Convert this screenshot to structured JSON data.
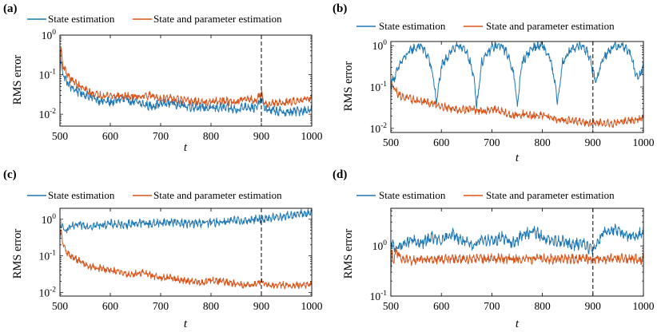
{
  "colors": {
    "state": "#1f77b4",
    "param": "#d95319"
  },
  "chart_data": [
    {
      "panel": "(a)",
      "type": "line",
      "xlabel": "t",
      "ylabel": "RMS error",
      "xlim": [
        500,
        1000
      ],
      "xticks": [
        "500",
        "600",
        "700",
        "800",
        "900",
        "1000"
      ],
      "ylim_log10": [
        -2.3,
        0
      ],
      "yticks": [
        {
          "exp": -2,
          "label": "10",
          "sup": "-2"
        },
        {
          "exp": -1,
          "label": "10",
          "sup": "-1"
        },
        {
          "exp": 0,
          "label": "10",
          "sup": "0"
        }
      ],
      "vline_x": 900,
      "legend": [
        "State estimation",
        "State and parameter estimation"
      ],
      "series": [
        {
          "name": "State estimation",
          "x": [
            500,
            505,
            510,
            520,
            540,
            560,
            580,
            600,
            620,
            650,
            680,
            700,
            720,
            750,
            780,
            800,
            820,
            850,
            870,
            890,
            900,
            905,
            910,
            930,
            950,
            970,
            1000
          ],
          "y": [
            0.35,
            0.12,
            0.08,
            0.05,
            0.035,
            0.028,
            0.022,
            0.02,
            0.024,
            0.02,
            0.016,
            0.018,
            0.02,
            0.016,
            0.015,
            0.014,
            0.015,
            0.013,
            0.016,
            0.014,
            0.025,
            0.016,
            0.013,
            0.012,
            0.011,
            0.012,
            0.013
          ]
        },
        {
          "name": "State and parameter estimation",
          "x": [
            500,
            502,
            505,
            510,
            520,
            540,
            560,
            580,
            600,
            620,
            650,
            680,
            700,
            720,
            750,
            780,
            800,
            820,
            850,
            870,
            890,
            900,
            905,
            910,
            930,
            950,
            970,
            1000
          ],
          "y": [
            0.1,
            0.5,
            0.2,
            0.13,
            0.08,
            0.05,
            0.035,
            0.03,
            0.03,
            0.029,
            0.028,
            0.03,
            0.025,
            0.025,
            0.022,
            0.02,
            0.02,
            0.022,
            0.02,
            0.025,
            0.022,
            0.035,
            0.02,
            0.018,
            0.019,
            0.02,
            0.022,
            0.026
          ]
        }
      ]
    },
    {
      "panel": "(b)",
      "type": "line",
      "xlabel": "t",
      "ylabel": "RMS error",
      "xlim": [
        500,
        1000
      ],
      "xticks": [
        "500",
        "600",
        "700",
        "800",
        "900",
        "1000"
      ],
      "ylim_log10": [
        -2.1,
        0.1
      ],
      "yticks": [
        {
          "exp": -2,
          "label": "10",
          "sup": "-2"
        },
        {
          "exp": -1,
          "label": "10",
          "sup": "-1"
        },
        {
          "exp": 0,
          "label": "10",
          "sup": "0"
        }
      ],
      "vline_x": 900,
      "legend": [
        "State estimation",
        "State and parameter estimation"
      ],
      "series": [
        {
          "name": "State estimation",
          "x": [
            500,
            510,
            520,
            540,
            560,
            575,
            585,
            590,
            600,
            620,
            640,
            655,
            665,
            670,
            680,
            700,
            720,
            735,
            745,
            750,
            760,
            780,
            800,
            815,
            825,
            830,
            840,
            860,
            880,
            895,
            905,
            910,
            920,
            940,
            960,
            975,
            985,
            990,
            1000
          ],
          "y": [
            0.12,
            0.2,
            0.4,
            0.8,
            1.0,
            0.5,
            0.15,
            0.04,
            0.3,
            0.8,
            1.0,
            0.5,
            0.15,
            0.035,
            0.4,
            0.9,
            1.0,
            0.5,
            0.15,
            0.035,
            0.4,
            0.9,
            1.0,
            0.5,
            0.12,
            0.04,
            0.4,
            0.9,
            1.0,
            0.5,
            0.12,
            0.2,
            0.5,
            0.95,
            1.0,
            0.6,
            0.2,
            0.15,
            0.35
          ]
        },
        {
          "name": "State and parameter estimation",
          "x": [
            500,
            510,
            520,
            540,
            560,
            580,
            600,
            620,
            640,
            660,
            680,
            700,
            720,
            740,
            760,
            780,
            800,
            820,
            840,
            860,
            880,
            900,
            920,
            940,
            960,
            980,
            1000
          ],
          "y": [
            0.14,
            0.08,
            0.06,
            0.05,
            0.045,
            0.04,
            0.035,
            0.03,
            0.028,
            0.03,
            0.025,
            0.03,
            0.025,
            0.02,
            0.022,
            0.02,
            0.02,
            0.018,
            0.016,
            0.015,
            0.014,
            0.013,
            0.014,
            0.013,
            0.015,
            0.016,
            0.018
          ]
        }
      ]
    },
    {
      "panel": "(c)",
      "type": "line",
      "xlabel": "t",
      "ylabel": "RMS error",
      "xlim": [
        500,
        1000
      ],
      "xticks": [
        "500",
        "600",
        "700",
        "800",
        "900",
        "1000"
      ],
      "ylim_log10": [
        -2.1,
        0.3
      ],
      "yticks": [
        {
          "exp": -2,
          "label": "10",
          "sup": "-2"
        },
        {
          "exp": -1,
          "label": "10",
          "sup": "-1"
        },
        {
          "exp": 0,
          "label": "10",
          "sup": "0"
        }
      ],
      "vline_x": 900,
      "legend": [
        "State estimation",
        "State and parameter estimation"
      ],
      "series": [
        {
          "name": "State estimation",
          "x": [
            500,
            510,
            520,
            540,
            560,
            580,
            600,
            620,
            640,
            660,
            680,
            700,
            720,
            740,
            760,
            780,
            800,
            820,
            840,
            860,
            880,
            900,
            920,
            940,
            960,
            980,
            1000
          ],
          "y": [
            0.7,
            0.5,
            0.6,
            0.7,
            0.65,
            0.7,
            0.75,
            0.7,
            0.75,
            0.8,
            0.75,
            0.8,
            0.85,
            0.8,
            0.75,
            0.8,
            0.8,
            0.85,
            0.9,
            0.9,
            0.95,
            1.0,
            1.1,
            1.2,
            1.3,
            1.4,
            1.5
          ]
        },
        {
          "name": "State and parameter estimation",
          "x": [
            500,
            502,
            505,
            510,
            520,
            540,
            560,
            580,
            600,
            620,
            640,
            660,
            680,
            700,
            720,
            740,
            760,
            780,
            800,
            820,
            840,
            860,
            880,
            900,
            920,
            940,
            960,
            980,
            1000
          ],
          "y": [
            0.3,
            0.5,
            0.25,
            0.15,
            0.1,
            0.07,
            0.05,
            0.045,
            0.04,
            0.035,
            0.03,
            0.035,
            0.03,
            0.025,
            0.025,
            0.022,
            0.02,
            0.018,
            0.022,
            0.02,
            0.018,
            0.016,
            0.016,
            0.02,
            0.015,
            0.016,
            0.015,
            0.016,
            0.017
          ]
        }
      ]
    },
    {
      "panel": "(d)",
      "type": "line",
      "xlabel": "t",
      "ylabel": "RMS error",
      "xlim": [
        500,
        1000
      ],
      "xticks": [
        "500",
        "600",
        "700",
        "800",
        "900",
        "1000"
      ],
      "ylim_log10": [
        -1,
        0.75
      ],
      "yticks": [
        {
          "exp": -1,
          "label": "10",
          "sup": "-1"
        },
        {
          "exp": 0,
          "label": "10",
          "sup": "0"
        }
      ],
      "vline_x": 900,
      "legend": [
        "State estimation",
        "State and parameter estimation"
      ],
      "series": [
        {
          "name": "State estimation",
          "x": [
            500,
            510,
            520,
            540,
            560,
            580,
            600,
            620,
            640,
            660,
            680,
            700,
            720,
            740,
            760,
            780,
            800,
            820,
            840,
            860,
            880,
            900,
            920,
            940,
            960,
            980,
            1000
          ],
          "y": [
            1.1,
            0.9,
            1.0,
            1.3,
            1.1,
            1.5,
            1.2,
            1.8,
            1.3,
            1.0,
            1.4,
            1.2,
            1.5,
            1.1,
            1.6,
            2.0,
            1.5,
            1.2,
            1.3,
            1.0,
            1.2,
            0.8,
            1.9,
            2.1,
            1.8,
            1.5,
            1.9
          ]
        },
        {
          "name": "State and parameter estimation",
          "x": [
            500,
            502,
            505,
            510,
            520,
            540,
            560,
            600,
            650,
            700,
            750,
            800,
            850,
            900,
            950,
            1000
          ],
          "y": [
            0.3,
            0.9,
            0.5,
            0.8,
            0.55,
            0.5,
            0.55,
            0.55,
            0.55,
            0.55,
            0.55,
            0.55,
            0.55,
            0.55,
            0.55,
            0.55
          ]
        }
      ]
    }
  ]
}
